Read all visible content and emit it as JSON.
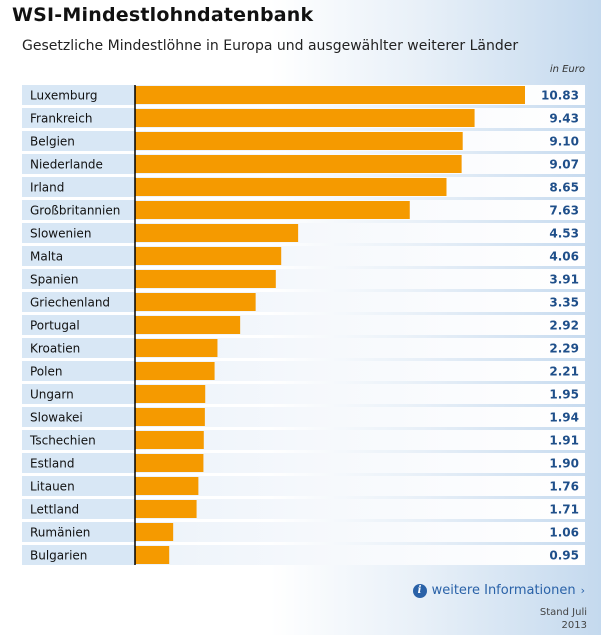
{
  "header": {
    "title": "WSI-Mindestlohndatenbank",
    "subtitle": "Gesetzliche Mindestlöhne in Europa und ausgewählter weiterer Länder",
    "unit": "in Euro"
  },
  "footer": {
    "more_label": "weitere Informationen",
    "stand_line1": "Stand Juli",
    "stand_line2": "2013"
  },
  "colors": {
    "bar": "#f59a00",
    "value_text": "#1f4f8a",
    "label_bg": "#d8e7f5",
    "link": "#2a62a8"
  },
  "icons": {
    "info": "info-circle-icon",
    "arrow": "arrow-right-icon"
  },
  "chart_data": {
    "type": "bar",
    "orientation": "horizontal",
    "categories": [
      "Luxemburg",
      "Frankreich",
      "Belgien",
      "Niederlande",
      "Irland",
      "Großbritannien",
      "Slowenien",
      "Malta",
      "Spanien",
      "Griechenland",
      "Portugal",
      "Kroatien",
      "Polen",
      "Ungarn",
      "Slowakei",
      "Tschechien",
      "Estland",
      "Litauen",
      "Lettland",
      "Rumänien",
      "Bulgarien"
    ],
    "values": [
      10.83,
      9.43,
      9.1,
      9.07,
      8.65,
      7.63,
      4.53,
      4.06,
      3.91,
      3.35,
      2.92,
      2.29,
      2.21,
      1.95,
      1.94,
      1.91,
      1.9,
      1.76,
      1.71,
      1.06,
      0.95
    ],
    "value_labels": [
      "10.83",
      "9.43",
      "9.10",
      "9.07",
      "8.65",
      "7.63",
      "4.53",
      "4.06",
      "3.91",
      "3.35",
      "2.92",
      "2.29",
      "2.21",
      "1.95",
      "1.94",
      "1.91",
      "1.90",
      "1.76",
      "1.71",
      "1.06",
      "0.95"
    ],
    "title": "WSI-Mindestlohndatenbank",
    "subtitle": "Gesetzliche Mindestlöhne in Europa und ausgewählter weiterer Länder",
    "xlabel": "",
    "ylabel": "",
    "unit": "in Euro",
    "xlim": [
      0,
      10.83
    ],
    "grid": false,
    "legend": "none"
  }
}
